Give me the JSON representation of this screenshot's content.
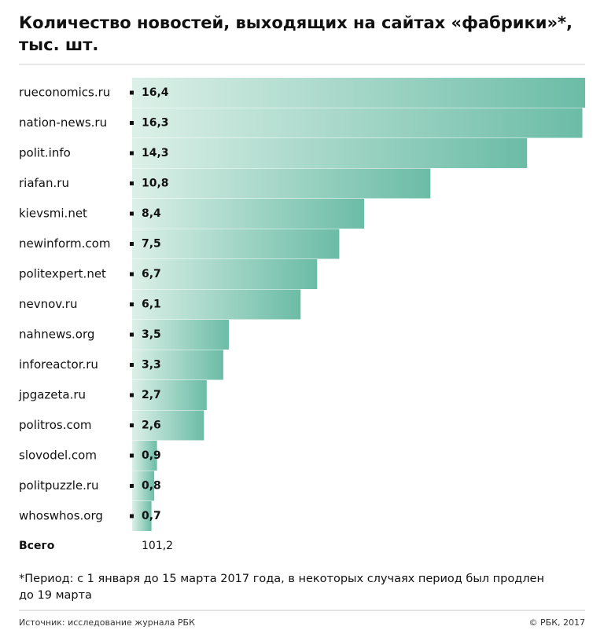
{
  "chart_data": {
    "type": "bar",
    "orientation": "horizontal",
    "title": [
      "Количество новостей, выходящих на сайтах «фабрики»*,",
      "тыс. шт."
    ],
    "categories": [
      "rueconomics.ru",
      "nation-news.ru",
      "polit.info",
      "riafan.ru",
      "kievsmi.net",
      "newinform.com",
      "politexpert.net",
      "nevnov.ru",
      "nahnews.org",
      "inforeactor.ru",
      "jpgazeta.ru",
      "politros.com",
      "slovodel.com",
      "politpuzzle.ru",
      "whoswhos.org"
    ],
    "values": [
      16.4,
      16.3,
      14.3,
      10.8,
      8.4,
      7.5,
      6.7,
      6.1,
      3.5,
      3.3,
      2.7,
      2.6,
      0.9,
      0.8,
      0.7
    ],
    "value_labels": [
      "16,4",
      "16,3",
      "14,3",
      "10,8",
      "8,4",
      "7,5",
      "6,7",
      "6,1",
      "3,5",
      "3,3",
      "2,7",
      "2,6",
      "0,9",
      "0,8",
      "0,7"
    ],
    "color": [
      "#dcf0e8",
      "#6bbca6"
    ],
    "total_label": "Всего",
    "total": "101,2",
    "footnote": [
      "*Период: с 1 января до 15 марта 2017 года, в некоторых случаях период был продлен",
      "до 19 марта"
    ],
    "source": "Источник: исследование журнала РБК",
    "copyright": "© РБК, 2017"
  }
}
